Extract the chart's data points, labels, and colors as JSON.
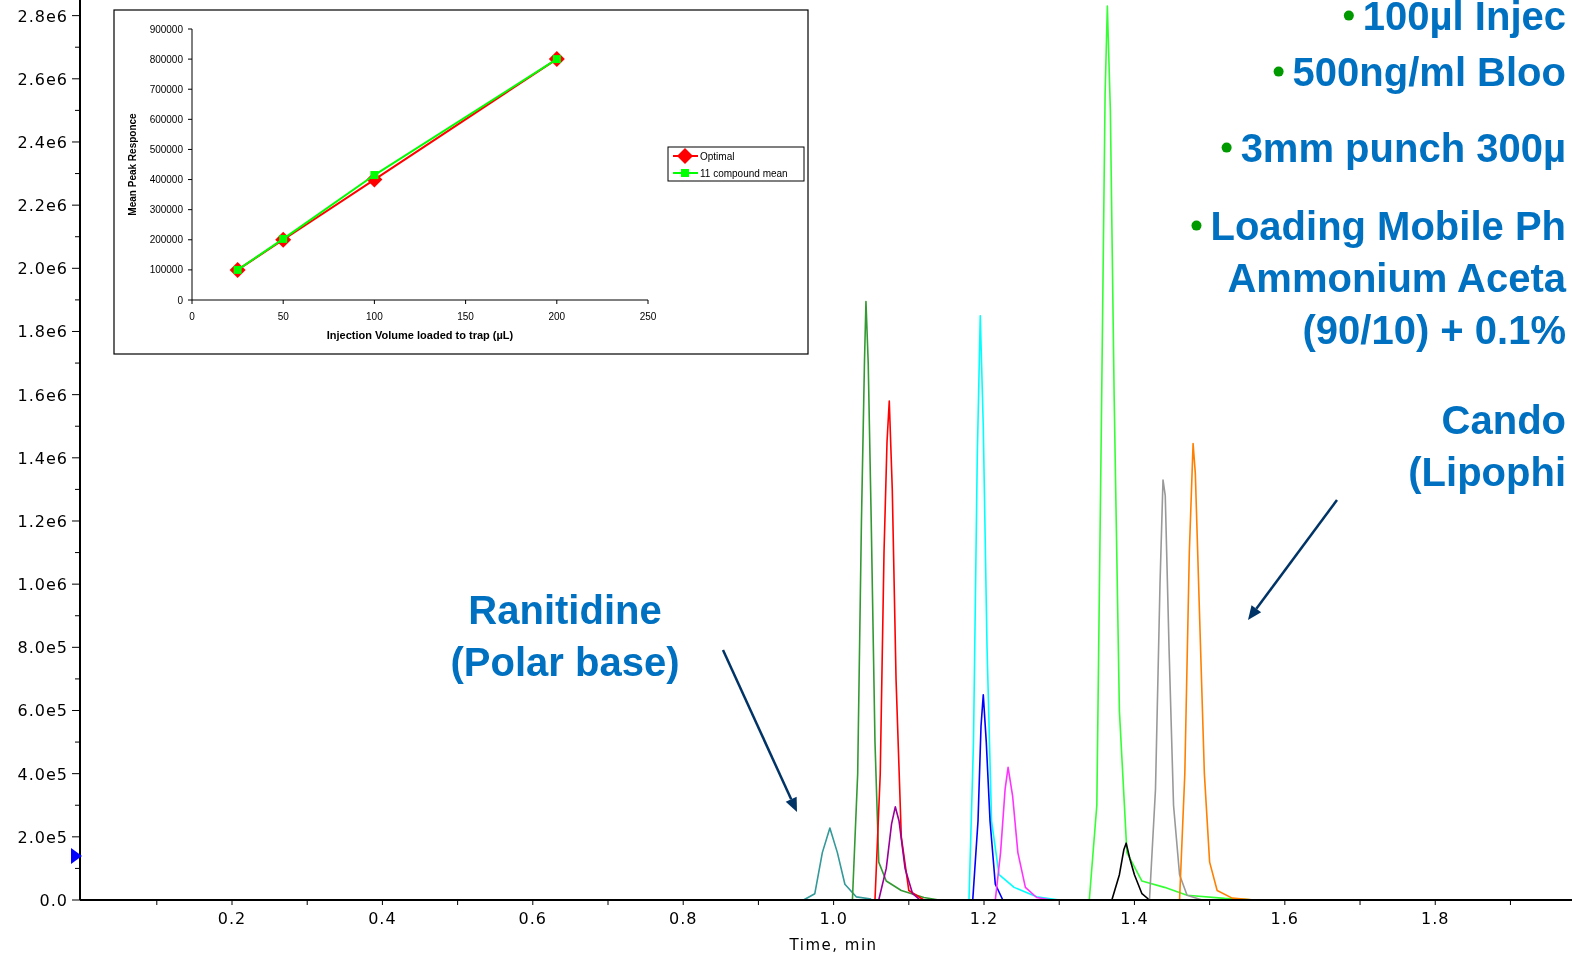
{
  "chart_data": [
    {
      "type": "line",
      "xlabel": "Time, min",
      "xlim": [
        0,
        1.98
      ],
      "ylim": [
        0,
        2840000
      ],
      "xticks": [
        {
          "value": 0.1,
          "label": null
        },
        {
          "value": 0.2,
          "label": "0.2"
        },
        {
          "value": 0.3,
          "label": null
        },
        {
          "value": 0.4,
          "label": "0.4"
        },
        {
          "value": 0.5,
          "label": null
        },
        {
          "value": 0.6,
          "label": "0.6"
        },
        {
          "value": 0.7,
          "label": null
        },
        {
          "value": 0.8,
          "label": "0.8"
        },
        {
          "value": 0.9,
          "label": null
        },
        {
          "value": 1,
          "label": "1.0"
        },
        {
          "value": 1.1,
          "label": null
        },
        {
          "value": 1.2,
          "label": "1.2"
        },
        {
          "value": 1.3,
          "label": null
        },
        {
          "value": 1.4,
          "label": "1.4"
        },
        {
          "value": 1.5,
          "label": null
        },
        {
          "value": 1.6,
          "label": "1.6"
        },
        {
          "value": 1.7,
          "label": null
        },
        {
          "value": 1.8,
          "label": "1.8"
        },
        {
          "value": 1.9,
          "label": null
        }
      ],
      "yticks": [
        {
          "value": 0,
          "label": "0.0"
        },
        {
          "value": 100000,
          "label": null
        },
        {
          "value": 200000,
          "label": "2.0e5"
        },
        {
          "value": 300000,
          "label": null
        },
        {
          "value": 400000,
          "label": "4.0e5"
        },
        {
          "value": 500000,
          "label": null
        },
        {
          "value": 600000,
          "label": "6.0e5"
        },
        {
          "value": 700000,
          "label": null
        },
        {
          "value": 800000,
          "label": "8.0e5"
        },
        {
          "value": 900000,
          "label": null
        },
        {
          "value": 1000000,
          "label": "1.0e6"
        },
        {
          "value": 1100000,
          "label": null
        },
        {
          "value": 1200000,
          "label": "1.2e6"
        },
        {
          "value": 1300000,
          "label": null
        },
        {
          "value": 1400000,
          "label": "1.4e6"
        },
        {
          "value": 1500000,
          "label": null
        },
        {
          "value": 1600000,
          "label": "1.6e6"
        },
        {
          "value": 1700000,
          "label": null
        },
        {
          "value": 1800000,
          "label": "1.8e6"
        },
        {
          "value": 1900000,
          "label": null
        },
        {
          "value": 2000000,
          "label": "2.0e6"
        },
        {
          "value": 2100000,
          "label": null
        },
        {
          "value": 2200000,
          "label": "2.2e6"
        },
        {
          "value": 2300000,
          "label": null
        },
        {
          "value": 2400000,
          "label": "2.4e6"
        },
        {
          "value": 2500000,
          "label": null
        },
        {
          "value": 2600000,
          "label": "2.6e6"
        },
        {
          "value": 2700000,
          "label": null
        },
        {
          "value": 2800000,
          "label": "2.8e6"
        }
      ],
      "series": [
        {
          "color": "#339999",
          "x": [
            0.96,
            0.975,
            0.985,
            0.995,
            1.005,
            1.015,
            1.03,
            1.05
          ],
          "values": [
            0,
            20000,
            150000,
            228000,
            150000,
            50000,
            10000,
            3000
          ]
        },
        {
          "color": "#339933",
          "x": [
            1.025,
            1.032,
            1.037,
            1.041,
            1.043,
            1.046,
            1.05,
            1.055,
            1.06,
            1.07,
            1.09,
            1.12,
            1.14
          ],
          "values": [
            0,
            400000,
            1200000,
            1700000,
            1895000,
            1700000,
            1200000,
            500000,
            120000,
            60000,
            30000,
            8000,
            0
          ]
        },
        {
          "color": "#ff0000",
          "x": [
            1.055,
            1.062,
            1.067,
            1.071,
            1.074,
            1.078,
            1.083,
            1.09,
            1.1,
            1.12
          ],
          "values": [
            0,
            400000,
            1100000,
            1450000,
            1580000,
            1300000,
            700000,
            200000,
            30000,
            0
          ]
        },
        {
          "color": "#990099",
          "x": [
            1.06,
            1.07,
            1.077,
            1.082,
            1.087,
            1.095,
            1.105,
            1.115
          ],
          "values": [
            0,
            100000,
            240000,
            295000,
            250000,
            100000,
            20000,
            0
          ]
        },
        {
          "color": "#00ffff",
          "x": [
            1.18,
            1.186,
            1.191,
            1.195,
            1.199,
            1.204,
            1.21,
            1.22,
            1.24,
            1.27,
            1.3
          ],
          "values": [
            0,
            500000,
            1400000,
            1850000,
            1500000,
            800000,
            250000,
            80000,
            40000,
            10000,
            0
          ]
        },
        {
          "color": "#0000ff",
          "x": [
            1.185,
            1.192,
            1.196,
            1.199,
            1.203,
            1.208,
            1.215,
            1.225
          ],
          "values": [
            0,
            250000,
            550000,
            650000,
            500000,
            250000,
            50000,
            0
          ]
        },
        {
          "color": "#ff33ff",
          "x": [
            1.215,
            1.222,
            1.228,
            1.232,
            1.238,
            1.245,
            1.255,
            1.27,
            1.29
          ],
          "values": [
            0,
            150000,
            350000,
            420000,
            330000,
            150000,
            40000,
            8000,
            0
          ]
        },
        {
          "color": "#33ff33",
          "x": [
            1.34,
            1.35,
            1.356,
            1.361,
            1.364,
            1.368,
            1.373,
            1.38,
            1.39,
            1.41,
            1.44,
            1.47,
            1.52,
            1.56
          ],
          "values": [
            0,
            300000,
            1500000,
            2550000,
            2830000,
            2500000,
            1600000,
            600000,
            150000,
            60000,
            40000,
            15000,
            5000,
            0
          ]
        },
        {
          "color": "#000000",
          "x": [
            1.37,
            1.38,
            1.386,
            1.389,
            1.394,
            1.4,
            1.41,
            1.42
          ],
          "values": [
            0,
            80000,
            160000,
            180000,
            130000,
            80000,
            20000,
            0
          ]
        },
        {
          "color": "#999999",
          "x": [
            1.42,
            1.428,
            1.434,
            1.438,
            1.441,
            1.446,
            1.452,
            1.46,
            1.47,
            1.49
          ],
          "values": [
            0,
            350000,
            1000000,
            1330000,
            1280000,
            800000,
            300000,
            80000,
            15000,
            0
          ]
        },
        {
          "color": "#ff8000",
          "x": [
            1.46,
            1.467,
            1.473,
            1.478,
            1.481,
            1.486,
            1.493,
            1.5,
            1.51,
            1.53,
            1.56
          ],
          "values": [
            0,
            400000,
            1100000,
            1445000,
            1350000,
            950000,
            400000,
            120000,
            30000,
            6000,
            0
          ]
        }
      ],
      "annotations": [
        "100µl Injec",
        "500ng/ml Bloo",
        "3mm punch 300µ",
        "Loading Mobile Ph\nAmmonium Aceta\n(90/10) + 0.1%",
        "Ranitidine\n(Polar base)",
        "Cando\n(Lipophi"
      ]
    },
    {
      "type": "line",
      "xlabel": "Injection Volume loaded to trap (µL)",
      "ylabel": "Mean Peak Responce",
      "x": [
        25,
        50,
        100,
        200
      ],
      "xlim": [
        0,
        250
      ],
      "xticks": [
        0,
        50,
        100,
        150,
        200,
        250
      ],
      "ylim": [
        0,
        900000
      ],
      "yticks": [
        0,
        100000,
        200000,
        300000,
        400000,
        500000,
        600000,
        700000,
        800000,
        900000
      ],
      "legend": "right",
      "series": [
        {
          "name": "Optimal",
          "color": "#ff0000",
          "marker": "diamond",
          "values": [
            100000,
            200000,
            400000,
            800000
          ]
        },
        {
          "name": "11 compound mean",
          "color": "#00ff00",
          "marker": "square",
          "values": [
            100000,
            203000,
            415000,
            800000
          ]
        }
      ]
    }
  ]
}
